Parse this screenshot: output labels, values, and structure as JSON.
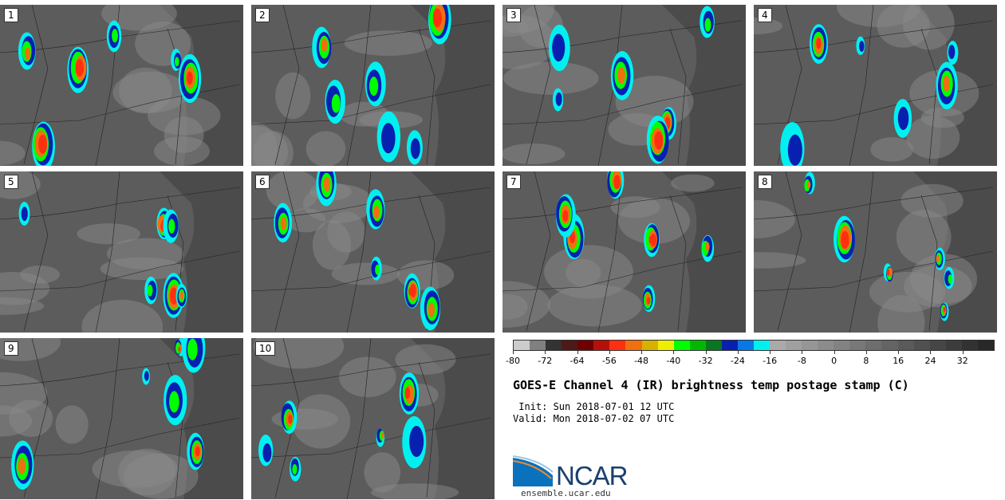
{
  "panels": [
    {
      "label": "1"
    },
    {
      "label": "2"
    },
    {
      "label": "3"
    },
    {
      "label": "4"
    },
    {
      "label": "5"
    },
    {
      "label": "6"
    },
    {
      "label": "7"
    },
    {
      "label": "8"
    },
    {
      "label": "9"
    },
    {
      "label": "10"
    }
  ],
  "colorbar": {
    "min": -80,
    "max": 40,
    "step": 4,
    "colors": [
      "#cccccc",
      "#808080",
      "#333333",
      "#4d1a1a",
      "#700000",
      "#b81008",
      "#ff3010",
      "#f07010",
      "#d8b000",
      "#eeee00",
      "#00ff00",
      "#00b800",
      "#087820",
      "#0820b0",
      "#0878e8",
      "#00f0f0",
      "#aaaaaa",
      "#a0a0a0",
      "#969696",
      "#8c8c8c",
      "#828282",
      "#787878",
      "#6e6e6e",
      "#646464",
      "#5a5a5a",
      "#505050",
      "#464646",
      "#3c3c3c",
      "#323232",
      "#282828"
    ],
    "ticks": [
      "-80",
      "-72",
      "-64",
      "-56",
      "-48",
      "-40",
      "-32",
      "-24",
      "-16",
      "-8",
      "0",
      "8",
      "16",
      "24",
      "32"
    ]
  },
  "title": "GOES-E Channel 4 (IR) brightness temp postage stamp (C)",
  "init": " Init: Sun 2018-07-01 12 UTC",
  "valid": "Valid: Mon 2018-07-02 07 UTC",
  "logo": {
    "text": "NCAR",
    "url": "ensemble.ucar.edu"
  }
}
